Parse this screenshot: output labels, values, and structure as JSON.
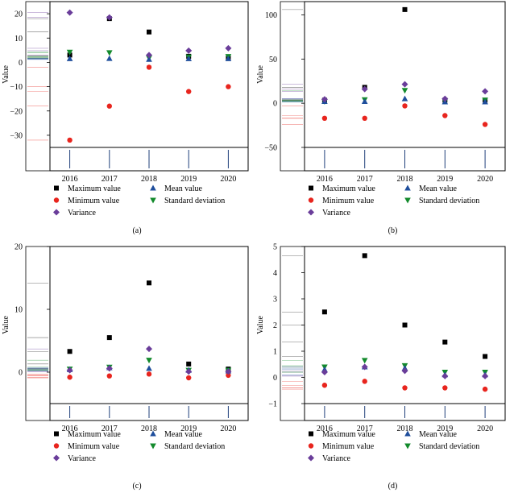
{
  "series_styles": [
    {
      "name": "Maximum value",
      "shape": "square",
      "color": "#000000"
    },
    {
      "name": "Minimum value",
      "shape": "circle",
      "color": "#e8251e"
    },
    {
      "name": "Variance",
      "shape": "diamond",
      "color": "#6a3d9a"
    },
    {
      "name": "Mean value",
      "shape": "triangle-up",
      "color": "#1f4e9c"
    },
    {
      "name": "Standard deviation",
      "shape": "triangle-down",
      "color": "#138a2c"
    }
  ],
  "legend_order": [
    0,
    3,
    1,
    4,
    2
  ],
  "chart_data": [
    {
      "type": "scatter",
      "caption": "(a)",
      "ylabel": "Value",
      "categories": [
        "2016",
        "2017",
        "2018",
        "2019",
        "2020"
      ],
      "ylim": [
        -35,
        25
      ],
      "yticks": [
        -30,
        -20,
        -10,
        0,
        10,
        20
      ],
      "ytick_labels": [
        "−30",
        "−20",
        "−10",
        "0",
        "10",
        "20"
      ],
      "series": [
        {
          "name": "Maximum value",
          "values": [
            3,
            18,
            12.5,
            2.5,
            1.8
          ]
        },
        {
          "name": "Minimum value",
          "values": [
            -32,
            -18,
            -2,
            -12,
            -10
          ]
        },
        {
          "name": "Variance",
          "values": [
            20.5,
            18.5,
            3,
            4.8,
            5.8
          ]
        },
        {
          "name": "Mean value",
          "values": [
            1.5,
            1.6,
            1.2,
            1.5,
            1.5
          ]
        },
        {
          "name": "Standard deviation",
          "values": [
            4.2,
            4,
            1.8,
            2.2,
            2.4
          ]
        }
      ]
    },
    {
      "type": "scatter",
      "caption": "(b)",
      "ylabel": "Value",
      "categories": [
        "2016",
        "2017",
        "2018",
        "2019",
        "2020"
      ],
      "ylim": [
        -50,
        115
      ],
      "yticks": [
        -50,
        0,
        50,
        100
      ],
      "ytick_labels": [
        "−50",
        "0",
        "50",
        "100"
      ],
      "series": [
        {
          "name": "Maximum value",
          "values": [
            3.5,
            18,
            106,
            3.5,
            3.5
          ]
        },
        {
          "name": "Minimum value",
          "values": [
            -17,
            -17,
            -3,
            -14,
            -24
          ]
        },
        {
          "name": "Variance",
          "values": [
            4.5,
            16,
            21.5,
            5,
            13.5
          ]
        },
        {
          "name": "Mean value",
          "values": [
            2,
            2,
            5,
            1.5,
            1.5
          ]
        },
        {
          "name": "Standard deviation",
          "values": [
            2,
            4,
            14.5,
            2.5,
            3.5
          ]
        }
      ]
    },
    {
      "type": "scatter",
      "caption": "(c)",
      "ylabel": "Value",
      "categories": [
        "2016",
        "2017",
        "2018",
        "2019",
        "2020"
      ],
      "ylim": [
        -5,
        20
      ],
      "yticks": [
        0,
        10,
        20
      ],
      "ytick_labels": [
        "0",
        "10",
        "20"
      ],
      "series": [
        {
          "name": "Maximum value",
          "values": [
            3.3,
            5.5,
            14.2,
            1.3,
            0.5
          ]
        },
        {
          "name": "Minimum value",
          "values": [
            -0.8,
            -0.6,
            -0.3,
            -0.9,
            -0.5
          ]
        },
        {
          "name": "Variance",
          "values": [
            0.3,
            0.6,
            3.7,
            0.1,
            0.1
          ]
        },
        {
          "name": "Mean value",
          "values": [
            0.4,
            0.7,
            0.6,
            0.3,
            0.2
          ]
        },
        {
          "name": "Standard deviation",
          "values": [
            0.5,
            0.8,
            1.9,
            0.3,
            0.3
          ]
        }
      ]
    },
    {
      "type": "scatter",
      "caption": "(d)",
      "ylabel": "Value",
      "categories": [
        "2016",
        "2017",
        "2018",
        "2019",
        "2020"
      ],
      "ylim": [
        -1,
        5
      ],
      "yticks": [
        -1,
        0,
        1,
        2,
        3,
        4,
        5
      ],
      "ytick_labels": [
        "−1",
        "0",
        "1",
        "2",
        "3",
        "4",
        "5"
      ],
      "series": [
        {
          "name": "Maximum value",
          "values": [
            2.5,
            4.65,
            2,
            1.35,
            0.8
          ]
        },
        {
          "name": "Minimum value",
          "values": [
            -0.3,
            -0.15,
            -0.4,
            -0.4,
            -0.45
          ]
        },
        {
          "name": "Variance",
          "values": [
            0.2,
            0.4,
            0.25,
            0.05,
            0.05
          ]
        },
        {
          "name": "Mean value",
          "values": [
            0.3,
            0.4,
            0.35,
            0.1,
            0.1
          ]
        },
        {
          "name": "Standard deviation",
          "values": [
            0.4,
            0.65,
            0.45,
            0.2,
            0.2
          ]
        }
      ]
    }
  ]
}
